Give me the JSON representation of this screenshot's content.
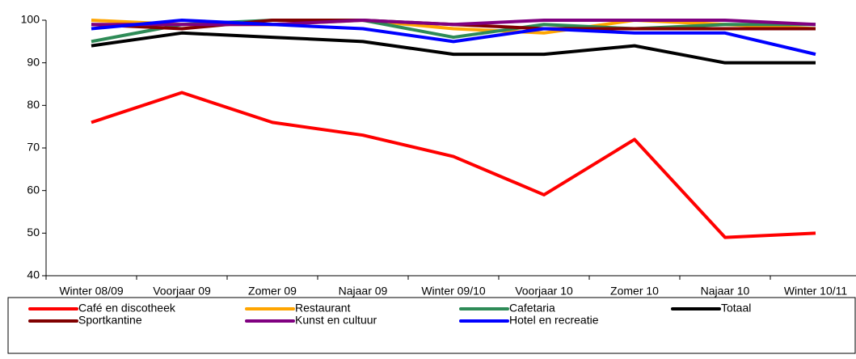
{
  "chart_data": {
    "type": "line",
    "categories": [
      "Winter 08/09",
      "Voorjaar 09",
      "Zomer 09",
      "Najaar 09",
      "Winter 09/10",
      "Voorjaar 10",
      "Zomer 10",
      "Najaar 10",
      "Winter 10/11"
    ],
    "series": [
      {
        "name": "Café en discotheek",
        "color": "#ff0000",
        "values": [
          76,
          83,
          76,
          73,
          68,
          59,
          72,
          49,
          50
        ]
      },
      {
        "name": "Restaurant",
        "color": "#ffa500",
        "values": [
          100,
          99,
          99,
          100,
          98,
          97,
          100,
          99,
          98
        ]
      },
      {
        "name": "Cafetaria",
        "color": "#2e8b57",
        "values": [
          95,
          99,
          100,
          100,
          96,
          99,
          98,
          99,
          99
        ]
      },
      {
        "name": "Totaal",
        "color": "#000000",
        "values": [
          94,
          97,
          96,
          95,
          92,
          92,
          94,
          90,
          90
        ]
      },
      {
        "name": "Sportkantine",
        "color": "#800000",
        "values": [
          99,
          98,
          100,
          100,
          99,
          98,
          98,
          98,
          98
        ]
      },
      {
        "name": "Kunst en cultuur",
        "color": "#800080",
        "values": [
          99,
          99,
          99,
          100,
          99,
          100,
          100,
          100,
          99
        ]
      },
      {
        "name": "Hotel en recreatie",
        "color": "#0000ff",
        "values": [
          98,
          100,
          99,
          98,
          95,
          98,
          97,
          97,
          92
        ]
      }
    ],
    "ylim": [
      40,
      100
    ],
    "yticks": [
      40,
      50,
      60,
      70,
      80,
      90,
      100
    ],
    "legend": "bottom"
  }
}
